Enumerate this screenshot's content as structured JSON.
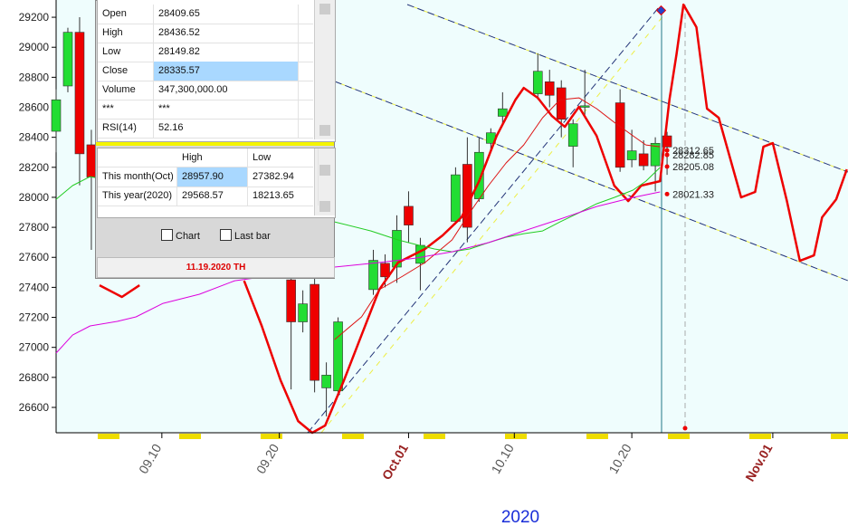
{
  "chart_data": {
    "type": "candlestick",
    "x_label": "2020",
    "xlim": [
      1,
      68.4
    ],
    "xticks": [
      {
        "value": 10,
        "label": "09.10"
      },
      {
        "value": 20,
        "label": "09.20"
      },
      {
        "value": 31,
        "label": "Oct.01"
      },
      {
        "value": 40,
        "label": "10.10"
      },
      {
        "value": 50,
        "label": "10.20"
      },
      {
        "value": 62,
        "label": "Nov.01"
      }
    ],
    "ylim": [
      26431,
      29315
    ],
    "yticks": [
      26600,
      26800,
      27000,
      27200,
      27400,
      27600,
      27800,
      28000,
      28200,
      28400,
      28600,
      28800,
      29000,
      29200
    ],
    "up_color": "#22dd33",
    "down_color": "#ee0000",
    "candles": {
      "x": [
        1,
        2,
        3,
        4,
        21,
        22,
        23,
        24,
        25,
        28,
        29,
        30,
        31,
        32,
        35,
        36,
        37,
        38,
        39,
        42,
        43,
        44,
        45,
        46,
        49,
        50,
        51,
        52,
        53
      ],
      "open": [
        28440,
        28742,
        29100,
        28350,
        27450,
        27170,
        27420,
        26730,
        26710,
        27385,
        27560,
        27535,
        27940,
        27560,
        27840,
        28220,
        27990,
        28360,
        28540,
        28690,
        28770,
        28730,
        28340,
        28600,
        28630,
        28250,
        28290,
        28210,
        28409.65
      ],
      "high": [
        28720,
        29130,
        29200,
        28450,
        27560,
        27380,
        27500,
        26900,
        27200,
        27650,
        27620,
        27880,
        28040,
        27730,
        28200,
        28400,
        28400,
        28460,
        28700,
        28960,
        28850,
        28780,
        28520,
        28850,
        28720,
        28450,
        28380,
        28400,
        28436.52
      ],
      "low": [
        28300,
        28700,
        28080,
        27650,
        26720,
        27100,
        26700,
        26540,
        26690,
        27350,
        27400,
        27430,
        27700,
        27380,
        27820,
        27700,
        27970,
        28300,
        28480,
        28650,
        28600,
        28400,
        28200,
        28550,
        28170,
        28200,
        28180,
        28040,
        28149.82
      ],
      "close": [
        28650,
        29100,
        28290,
        28135,
        27170,
        27290,
        26780,
        26815,
        27170,
        27580,
        27470,
        27780,
        27815,
        27680,
        28150,
        27800,
        28300,
        28430,
        28590,
        28840,
        28680,
        28520,
        28490,
        28610,
        28200,
        28310,
        28210,
        28360,
        28335.57
      ]
    },
    "series": [
      {
        "color": "#ee0000",
        "width": 2.5,
        "x": [
          4.7,
          6.6,
          8.1,
          null,
          17,
          18.5,
          20.1,
          21.6,
          22.8,
          23.9,
          25.5,
          27,
          28.5,
          30.1,
          32.4,
          33.9,
          35.5,
          37,
          38.5,
          40.1,
          40.8,
          42,
          43.2,
          44.3,
          45.5,
          47,
          48.5,
          49.7,
          50.8,
          52.4,
          53.2,
          53.8,
          54.4,
          55.5,
          56.4,
          57.4,
          59.3,
          60.5,
          61.2,
          62,
          63.2,
          64.3,
          65.5,
          66.2,
          67.4,
          68.3
        ],
        "values": [
          27414,
          27336,
          27414,
          null,
          27444,
          27143,
          26781,
          26509,
          26431,
          26479,
          26781,
          27082,
          27384,
          27565,
          27656,
          27746,
          27867,
          28108,
          28410,
          28651,
          28729,
          28663,
          28542,
          28470,
          28603,
          28410,
          28078,
          27975,
          28078,
          28108,
          28651,
          28953,
          29284,
          29134,
          28591,
          28530,
          28000,
          28036,
          28337,
          28361,
          27975,
          27577,
          27613,
          27867,
          27987,
          28186
        ]
      },
      {
        "color": "#dd1111",
        "width": 1,
        "x": [
          24.7,
          27,
          28.5,
          30.5,
          32.4,
          34.7,
          36.2,
          37.8,
          39.3,
          40.8,
          42.4,
          43.9,
          45.5,
          47,
          48.5,
          50.1,
          51.2,
          52.4
        ],
        "values": [
          27052,
          27203,
          27384,
          27475,
          27565,
          27716,
          27897,
          28078,
          28229,
          28349,
          28530,
          28651,
          28663,
          28591,
          28500,
          28410,
          28349,
          28337
        ]
      },
      {
        "color": "#22cc22",
        "width": 1,
        "x": [
          1,
          2.4,
          3.9,
          24.7,
          27.8,
          30.1,
          31.6,
          33.2,
          34.7,
          36.2,
          37.8,
          39.3,
          40.8,
          42.4,
          43.9,
          45.5,
          47,
          48.5,
          50.1,
          51.2,
          52.4
        ],
        "values": [
          27987,
          28078,
          28138,
          27836,
          27776,
          27716,
          27686,
          27656,
          27637,
          27656,
          27698,
          27734,
          27758,
          27776,
          27836,
          27897,
          27957,
          27999,
          28048,
          28108,
          28199
        ]
      },
      {
        "color": "#dd00dd",
        "width": 1,
        "x": [
          1,
          2.4,
          3.9,
          6.2,
          7.8,
          10.1,
          13.2,
          16.2,
          24.7,
          28.5,
          31.6,
          34.7,
          37.8,
          40.8,
          43.9,
          47,
          50.1,
          52.4
        ],
        "values": [
          26962,
          27082,
          27143,
          27173,
          27203,
          27293,
          27354,
          27444,
          27535,
          27565,
          27595,
          27637,
          27698,
          27776,
          27855,
          27939,
          27999,
          28036
        ]
      }
    ],
    "price_labels": [
      28312.65,
      28282.85,
      28205.08,
      28021.33
    ]
  },
  "panel": {
    "quote_rows": [
      [
        "Open",
        "28409.65"
      ],
      [
        "High",
        "28436.52"
      ],
      [
        "Low",
        "28149.82"
      ],
      [
        "Close",
        "28335.57"
      ],
      [
        "Volume",
        "347,300,000.00"
      ],
      [
        "***",
        "***"
      ],
      [
        "RSI(14)",
        "52.16"
      ]
    ],
    "range_header": [
      "High",
      "Low"
    ],
    "range_rows": [
      [
        "This month(Oct)",
        "28957.90",
        "27382.94"
      ],
      [
        "This year(2020)",
        "29568.57",
        "18213.65"
      ]
    ],
    "checkboxes": [
      "Chart",
      "Last bar"
    ],
    "footer": "11.19.2020 TH"
  }
}
